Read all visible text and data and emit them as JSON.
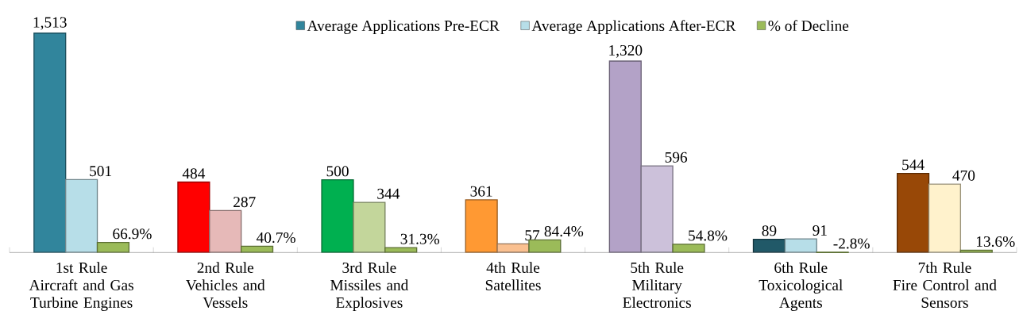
{
  "chart_data": {
    "type": "bar",
    "legend": "top",
    "categories": [
      "1st Rule\nAircraft and Gas\nTurbine Engines",
      "2nd Rule\nVehicles and\nVessels",
      "3rd Rule\nMissiles and\nExplosives",
      "4th Rule\nSatellites",
      "5th Rule\nMilitary\nElectronics",
      "6th Rule\nToxicological\nAgents",
      "7th Rule\nFire Control and\nSensors"
    ],
    "series": [
      {
        "name": "Average Applications Pre-ECR",
        "color": "#31859c",
        "colors": [
          "#31859c",
          "#ff0000",
          "#00b050",
          "#ff9933",
          "#b3a2c7",
          "#215968",
          "#984807"
        ],
        "values": [
          1513,
          484,
          500,
          361,
          1320,
          89,
          544
        ],
        "value_labels": [
          "1,513",
          "484",
          "500",
          "361",
          "1,320",
          "89",
          "544"
        ]
      },
      {
        "name": "Average Applications After-ECR",
        "color": "#b7dee8",
        "colors": [
          "#b7dee8",
          "#e6b9b8",
          "#c3d69b",
          "#fac090",
          "#ccc1da",
          "#b7dee8",
          "#fff2cc"
        ],
        "values": [
          501,
          287,
          344,
          57,
          596,
          91,
          470
        ],
        "value_labels": [
          "501",
          "287",
          "344",
          "57",
          "596",
          "91",
          "470"
        ]
      },
      {
        "name": "% of Decline",
        "color": "#9bbb59",
        "values": [
          66.9,
          40.7,
          31.3,
          84.4,
          54.8,
          -2.8,
          13.6
        ],
        "value_labels": [
          "66.9%",
          "40.7%",
          "31.3%",
          "84.4%",
          "54.8%",
          "-2.8%",
          "13.6%"
        ]
      }
    ]
  }
}
